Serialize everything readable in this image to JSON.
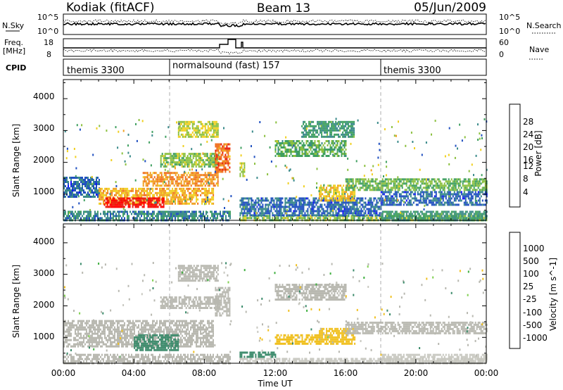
{
  "header": {
    "radar": "Kodiak (fitACF)",
    "beam": "Beam 13",
    "date": "05/Jun/2009"
  },
  "top_panels": {
    "nsky_label": "N.Sky",
    "nsky_ticks": [
      "10^5",
      "10^0"
    ],
    "nsearch_label": "N.Search",
    "nsearch_ticks": [
      "10^5",
      "10^0"
    ],
    "freq_label_line1": "Freq.",
    "freq_label_line2": "[MHz]",
    "freq_ticks": [
      "18",
      "8"
    ],
    "nave_label": "Nave",
    "nave_ticks": [
      "60",
      "0"
    ],
    "cpid_label": "CPID",
    "cpid_segments": [
      {
        "label": "themis 3300",
        "start_hour": 0
      },
      {
        "label": "normalsound (fast) 157",
        "start_hour": 6
      },
      {
        "label": "themis 3300",
        "start_hour": 18
      }
    ]
  },
  "colors": {
    "power_scale": [
      "#1010ff",
      "#2050c0",
      "#3a8a8a",
      "#40a060",
      "#8cc040",
      "#f0d020",
      "#f0a020",
      "#f07020",
      "#e82010",
      "#ff0000"
    ],
    "velocity_scale": [
      "#2040b0",
      "#3070c0",
      "#3a8a6a",
      "#40b040",
      "#80d050",
      "#c8c8c0",
      "#f0c020",
      "#f0a020",
      "#f07010",
      "#e84010",
      "#ff0000"
    ],
    "ground_scatter": "#b8b8b0"
  },
  "chart_data": [
    {
      "type": "heatmap",
      "name": "power",
      "xlabel": "",
      "ylabel": "Slant Range [km]",
      "xlim": [
        0,
        24
      ],
      "ylim": [
        180,
        4600
      ],
      "y_ticks": [
        "4000",
        "3000",
        "2000",
        "1000"
      ],
      "colorbar": {
        "label": "Power [dB]",
        "range": [
          0,
          32
        ],
        "ticks": [
          "28",
          "24",
          "20",
          "16",
          "12",
          "8",
          "4"
        ]
      },
      "bands": [
        {
          "t0": 0.0,
          "t1": 9.5,
          "r0": 180,
          "r1": 480,
          "value": 8
        },
        {
          "t0": 0.0,
          "t1": 2.0,
          "r0": 900,
          "r1": 1550,
          "value": 6
        },
        {
          "t0": 2.0,
          "t1": 8.5,
          "r0": 700,
          "r1": 1200,
          "value": 20
        },
        {
          "t0": 2.3,
          "t1": 5.7,
          "r0": 600,
          "r1": 900,
          "value": 29
        },
        {
          "t0": 4.5,
          "t1": 8.8,
          "r0": 1300,
          "r1": 1700,
          "value": 22
        },
        {
          "t0": 5.5,
          "t1": 8.8,
          "r0": 1900,
          "r1": 2300,
          "value": 14
        },
        {
          "t0": 6.5,
          "t1": 8.8,
          "r0": 2800,
          "r1": 3300,
          "value": 16
        },
        {
          "t0": 8.6,
          "t1": 9.4,
          "r0": 1700,
          "r1": 2600,
          "value": 24
        },
        {
          "t0": 10.0,
          "t1": 10.3,
          "r0": 1600,
          "r1": 2000,
          "value": 16
        },
        {
          "t0": 10.0,
          "t1": 24.0,
          "r0": 180,
          "r1": 350,
          "value": 14
        },
        {
          "t0": 10.0,
          "t1": 18.0,
          "r0": 350,
          "r1": 900,
          "value": 6
        },
        {
          "t0": 12.0,
          "t1": 16.0,
          "r0": 2200,
          "r1": 2700,
          "value": 12
        },
        {
          "t0": 13.5,
          "t1": 16.5,
          "r0": 2800,
          "r1": 3300,
          "value": 10
        },
        {
          "t0": 14.5,
          "t1": 16.5,
          "r0": 800,
          "r1": 1300,
          "value": 18
        },
        {
          "t0": 16.0,
          "t1": 24.0,
          "r0": 1150,
          "r1": 1500,
          "value": 13
        },
        {
          "t0": 18.0,
          "t1": 24.0,
          "r0": 700,
          "r1": 1100,
          "value": 6
        },
        {
          "t0": 18.0,
          "t1": 24.0,
          "r0": 180,
          "r1": 480,
          "value": 10
        }
      ]
    },
    {
      "type": "heatmap",
      "name": "velocity",
      "xlabel": "Time UT",
      "ylabel": "Slant Range [km]",
      "xlim": [
        0,
        24
      ],
      "ylim": [
        180,
        4600
      ],
      "x_ticks": [
        "00:00",
        "04:00",
        "08:00",
        "12:00",
        "16:00",
        "20:00",
        "00:00"
      ],
      "y_ticks": [
        "4000",
        "3000",
        "2000",
        "1000"
      ],
      "colorbar": {
        "label": "Velocity [m s^-1]",
        "ticks": [
          "1000",
          "500",
          "100",
          "25",
          "-25",
          "-100",
          "-500",
          "-1000"
        ]
      },
      "bands": [
        {
          "t0": 0.0,
          "t1": 9.5,
          "r0": 180,
          "r1": 480,
          "value": "gs"
        },
        {
          "t0": 0.0,
          "t1": 8.5,
          "r0": 700,
          "r1": 1550,
          "value": "gs"
        },
        {
          "t0": 4.0,
          "t1": 6.5,
          "r0": 600,
          "r1": 1100,
          "value": 300
        },
        {
          "t0": 5.5,
          "t1": 8.8,
          "r0": 1900,
          "r1": 2300,
          "value": "gs"
        },
        {
          "t0": 6.5,
          "t1": 8.8,
          "r0": 2800,
          "r1": 3300,
          "value": "gs"
        },
        {
          "t0": 8.6,
          "t1": 9.4,
          "r0": 1700,
          "r1": 2600,
          "value": "gs"
        },
        {
          "t0": 10.0,
          "t1": 12.0,
          "r0": 400,
          "r1": 550,
          "value": 120
        },
        {
          "t0": 10.0,
          "t1": 24.0,
          "r0": 180,
          "r1": 350,
          "value": -60
        },
        {
          "t0": 12.0,
          "t1": 14.5,
          "r0": 800,
          "r1": 1100,
          "value": -300
        },
        {
          "t0": 14.5,
          "t1": 16.5,
          "r0": 800,
          "r1": 1300,
          "value": -350
        },
        {
          "t0": 12.0,
          "t1": 16.0,
          "r0": 2200,
          "r1": 2700,
          "value": "gs"
        },
        {
          "t0": 16.0,
          "t1": 24.0,
          "r0": 1150,
          "r1": 1500,
          "value": "gs"
        },
        {
          "t0": 18.0,
          "t1": 24.0,
          "r0": 180,
          "r1": 480,
          "value": -40
        }
      ]
    }
  ]
}
